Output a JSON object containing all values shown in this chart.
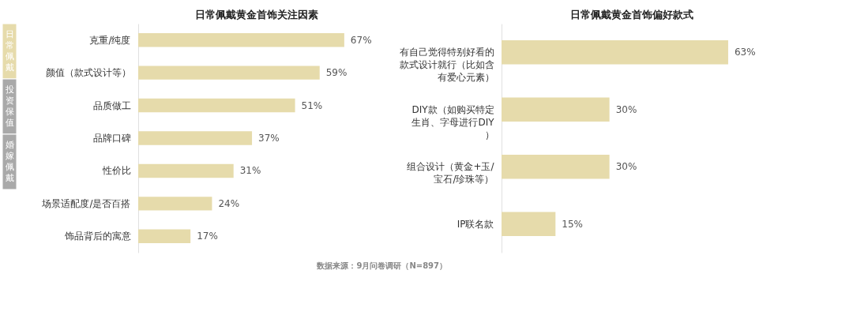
{
  "chart_data": [
    {
      "type": "bar",
      "orientation": "horizontal",
      "title": "日常佩戴黄金首饰关注因素",
      "categories": [
        "克重/纯度",
        "颜值（款式设计等）",
        "品质做工",
        "品牌口碑",
        "性价比",
        "场景适配度/是否百搭",
        "饰品背后的寓意"
      ],
      "values": [
        67,
        59,
        51,
        37,
        31,
        24,
        17
      ],
      "value_labels": [
        "67%",
        "59%",
        "51%",
        "37%",
        "31%",
        "24%",
        "17%"
      ],
      "color": "#e6dbab",
      "annotations": [
        "日常佩戴",
        "投资保值",
        "婚嫁佩戴"
      ]
    },
    {
      "type": "bar",
      "orientation": "horizontal",
      "title": "日常佩戴黄金首饰偏好款式",
      "categories": [
        "有自己觉得特别好看的款式设计就行（比如含有爱心元素）",
        "DIY款（如购买特定生肖、字母进行DIY）",
        "组合设计（黄金+玉/宝石/珍珠等）",
        "IP联名款"
      ],
      "values": [
        63,
        30,
        30,
        15
      ],
      "value_labels": [
        "63%",
        "30%",
        "30%",
        "15%"
      ],
      "color": "#e6dbab",
      "annotations": [
        "数据来源：9月问卷调研（N=897）"
      ]
    }
  ]
}
